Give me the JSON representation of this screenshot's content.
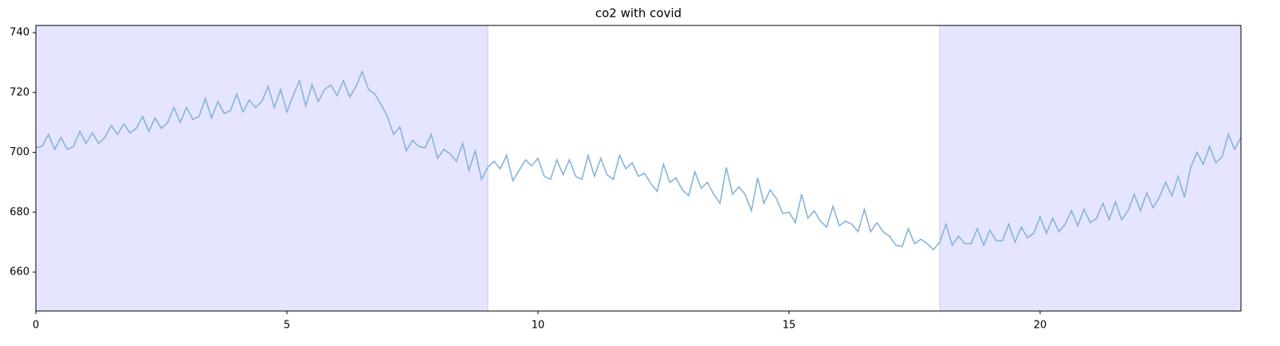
{
  "chart_data": {
    "type": "line",
    "title": "co2 with covid",
    "x": [
      0,
      0.125,
      0.25,
      0.375,
      0.5,
      0.625,
      0.75,
      0.875,
      1,
      1.125,
      1.25,
      1.375,
      1.5,
      1.625,
      1.75,
      1.875,
      2,
      2.125,
      2.25,
      2.375,
      2.5,
      2.625,
      2.75,
      2.875,
      3,
      3.125,
      3.25,
      3.375,
      3.5,
      3.625,
      3.75,
      3.875,
      4,
      4.125,
      4.25,
      4.375,
      4.5,
      4.625,
      4.75,
      4.875,
      5,
      5.125,
      5.25,
      5.375,
      5.5,
      5.625,
      5.75,
      5.875,
      6,
      6.125,
      6.25,
      6.375,
      6.5,
      6.625,
      6.75,
      6.875,
      7,
      7.125,
      7.25,
      7.375,
      7.5,
      7.625,
      7.75,
      7.875,
      8,
      8.125,
      8.25,
      8.375,
      8.5,
      8.625,
      8.75,
      8.875,
      9,
      9.125,
      9.25,
      9.375,
      9.5,
      9.625,
      9.75,
      9.875,
      10,
      10.125,
      10.25,
      10.375,
      10.5,
      10.625,
      10.75,
      10.875,
      11,
      11.125,
      11.25,
      11.375,
      11.5,
      11.625,
      11.75,
      11.875,
      12,
      12.125,
      12.25,
      12.375,
      12.5,
      12.625,
      12.75,
      12.875,
      13,
      13.125,
      13.25,
      13.375,
      13.5,
      13.625,
      13.75,
      13.875,
      14,
      14.125,
      14.25,
      14.375,
      14.5,
      14.625,
      14.75,
      14.875,
      15,
      15.125,
      15.25,
      15.375,
      15.5,
      15.625,
      15.75,
      15.875,
      16,
      16.125,
      16.25,
      16.375,
      16.5,
      16.625,
      16.75,
      16.875,
      17,
      17.125,
      17.25,
      17.375,
      17.5,
      17.625,
      17.75,
      17.875,
      18,
      18.125,
      18.25,
      18.375,
      18.5,
      18.625,
      18.75,
      18.875,
      19,
      19.125,
      19.25,
      19.375,
      19.5,
      19.625,
      19.75,
      19.875,
      20,
      20.125,
      20.25,
      20.375,
      20.5,
      20.625,
      20.75,
      20.875,
      21,
      21.125,
      21.25,
      21.375,
      21.5,
      21.625,
      21.75,
      21.875,
      22,
      22.125,
      22.25,
      22.375,
      22.5,
      22.625,
      22.75,
      22.875,
      23,
      23.125,
      23.25,
      23.375,
      23.5,
      23.625,
      23.75,
      23.875,
      24
    ],
    "values": [
      701.5,
      702,
      706,
      701,
      705,
      701,
      702,
      707,
      703,
      706.5,
      703,
      705,
      709,
      706,
      709.5,
      706.5,
      708,
      712,
      707,
      711.5,
      708,
      710,
      715,
      710,
      715,
      711,
      712,
      718,
      711.5,
      717,
      713,
      714,
      719.5,
      713.5,
      717.5,
      715,
      717,
      722,
      715,
      721,
      713.5,
      719,
      724,
      715.5,
      722.5,
      717,
      721,
      722.5,
      719,
      724,
      718.5,
      722,
      727,
      721,
      719.5,
      716,
      712,
      706,
      708.5,
      700.5,
      704,
      702,
      701.5,
      706,
      698,
      701,
      699.5,
      697,
      703,
      694,
      700.5,
      691,
      695,
      697,
      694.5,
      699,
      690.5,
      694,
      697.5,
      695.5,
      698,
      692,
      691,
      697.5,
      692.5,
      697.5,
      692,
      691,
      699,
      692,
      698,
      692.5,
      691,
      699,
      694.5,
      696.5,
      692,
      693,
      689.5,
      687,
      696,
      690,
      691.5,
      687.5,
      685.5,
      693.5,
      688,
      690,
      686,
      683,
      695,
      686,
      688.5,
      686,
      680.5,
      691.5,
      683,
      687.5,
      684.5,
      679.5,
      680,
      676.5,
      686,
      678,
      680.5,
      677,
      675,
      682,
      675.5,
      677,
      676,
      673.5,
      681,
      673.5,
      676.5,
      673.5,
      672,
      669,
      668.5,
      674.5,
      669.5,
      671,
      669.5,
      667.5,
      670,
      676,
      669,
      672,
      669.5,
      669.5,
      674.5,
      669,
      674,
      670.5,
      670.5,
      676,
      670,
      675,
      671.5,
      673,
      678.5,
      673,
      678,
      673.5,
      676,
      680.5,
      675.5,
      681,
      676.5,
      678,
      683,
      677.5,
      683.5,
      677.5,
      680.5,
      686,
      680.5,
      686.5,
      681.5,
      685,
      690,
      685.5,
      692,
      685,
      695,
      700,
      696,
      702,
      696.5,
      698.5,
      706,
      701,
      705
    ],
    "color": "#86b3da",
    "spans": [
      [
        0,
        9
      ],
      [
        18,
        24
      ]
    ],
    "span_color": "#e5e5ff",
    "xlim": [
      0,
      24
    ],
    "ylim": [
      647,
      742.4
    ],
    "xticks": [
      0,
      5,
      10,
      15,
      20
    ],
    "yticks": [
      660,
      680,
      700,
      720,
      740
    ]
  }
}
